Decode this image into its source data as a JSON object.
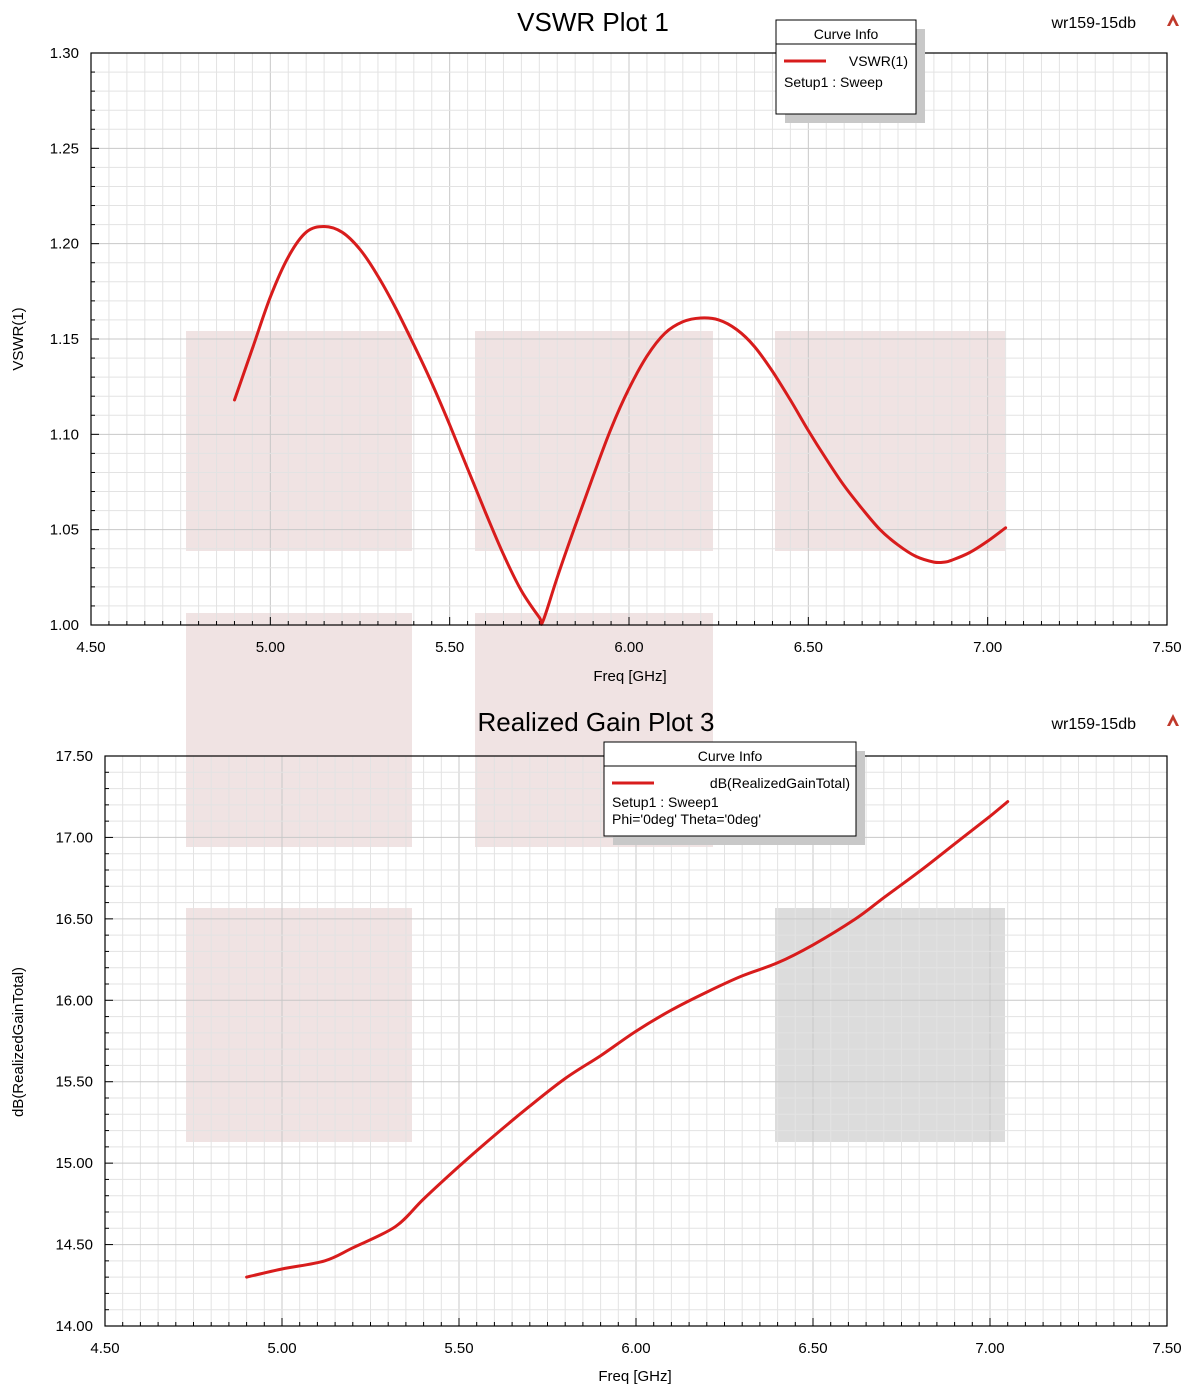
{
  "colors": {
    "curve": "#d81c1c",
    "grid_major": "#c8c8c8",
    "grid_minor": "#e3e3e3",
    "watermark_pink": "#ead7d7",
    "watermark_gray": "#d6d6d6",
    "logo": "#c0392b"
  },
  "icons": {
    "corner_logo": "ansys-logo-icon"
  },
  "chart_data": [
    {
      "type": "line",
      "title": "VSWR Plot 1",
      "tag": "wr159-15db",
      "xlabel": "Freq [GHz]",
      "ylabel": "VSWR(1)",
      "xlim": [
        4.5,
        7.5
      ],
      "ylim": [
        1.0,
        1.3
      ],
      "x_ticks": [
        "4.50",
        "5.00",
        "5.50",
        "6.00",
        "6.50",
        "7.00",
        "7.50"
      ],
      "y_ticks": [
        "1.00",
        "1.05",
        "1.10",
        "1.15",
        "1.20",
        "1.25",
        "1.30"
      ],
      "grid": true,
      "legend": {
        "title": "Curve Info",
        "placement": "top-right",
        "entries": [
          "VSWR(1)",
          "Setup1 : Sweep"
        ]
      },
      "series": [
        {
          "name": "VSWR(1)",
          "x": [
            4.9,
            4.95,
            5.0,
            5.05,
            5.1,
            5.15,
            5.2,
            5.25,
            5.3,
            5.35,
            5.4,
            5.45,
            5.5,
            5.55,
            5.6,
            5.65,
            5.7,
            5.75,
            5.76,
            5.8,
            5.85,
            5.9,
            5.95,
            6.0,
            6.05,
            6.1,
            6.15,
            6.2,
            6.25,
            6.3,
            6.35,
            6.4,
            6.45,
            6.5,
            6.55,
            6.6,
            6.65,
            6.7,
            6.75,
            6.8,
            6.85,
            6.88,
            6.9,
            6.95,
            7.0,
            7.05
          ],
          "values": [
            1.118,
            1.145,
            1.172,
            1.193,
            1.206,
            1.209,
            1.206,
            1.197,
            1.183,
            1.166,
            1.147,
            1.127,
            1.105,
            1.082,
            1.059,
            1.037,
            1.018,
            1.004,
            1.002,
            1.025,
            1.052,
            1.078,
            1.103,
            1.124,
            1.141,
            1.153,
            1.159,
            1.161,
            1.16,
            1.155,
            1.146,
            1.133,
            1.118,
            1.102,
            1.087,
            1.073,
            1.061,
            1.05,
            1.042,
            1.036,
            1.033,
            1.033,
            1.034,
            1.038,
            1.044,
            1.051
          ]
        }
      ]
    },
    {
      "type": "line",
      "title": "Realized Gain Plot 3",
      "tag": "wr159-15db",
      "xlabel": "Freq [GHz]",
      "ylabel": "dB(RealizedGainTotal)",
      "xlim": [
        4.5,
        7.5
      ],
      "ylim": [
        14.0,
        17.5
      ],
      "x_ticks": [
        "4.50",
        "5.00",
        "5.50",
        "6.00",
        "6.50",
        "7.00",
        "7.50"
      ],
      "y_ticks": [
        "14.00",
        "14.50",
        "15.00",
        "15.50",
        "16.00",
        "16.50",
        "17.00",
        "17.50"
      ],
      "grid": true,
      "legend": {
        "title": "Curve Info",
        "placement": "top-right",
        "entries": [
          "dB(RealizedGainTotal)",
          "Setup1 : Sweep1",
          "Phi='0deg' Theta='0deg'"
        ]
      },
      "series": [
        {
          "name": "dB(RealizedGainTotal)",
          "x": [
            4.9,
            5.0,
            5.12,
            5.2,
            5.32,
            5.4,
            5.5,
            5.6,
            5.7,
            5.8,
            5.9,
            6.0,
            6.1,
            6.2,
            6.3,
            6.4,
            6.5,
            6.62,
            6.7,
            6.8,
            6.9,
            7.0,
            7.05
          ],
          "values": [
            14.3,
            14.35,
            14.4,
            14.48,
            14.61,
            14.78,
            14.98,
            15.17,
            15.35,
            15.52,
            15.66,
            15.81,
            15.94,
            16.05,
            16.15,
            16.23,
            16.34,
            16.5,
            16.63,
            16.79,
            16.96,
            17.13,
            17.22
          ]
        }
      ]
    }
  ]
}
